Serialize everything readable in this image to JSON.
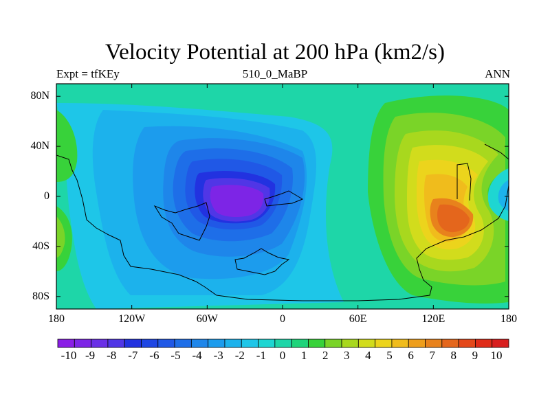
{
  "title": "Velocity Potential at 200 hPa (km2/s)",
  "subtitle_left": "Expt = tfKEy",
  "subtitle_center": "510_0_MaBP",
  "subtitle_right": "ANN",
  "y_ticks": [
    "80N",
    "40N",
    "0",
    "40S",
    "80S"
  ],
  "x_ticks": [
    "180",
    "120W",
    "60W",
    "0",
    "60E",
    "120E",
    "180"
  ],
  "colorbar": {
    "labels": [
      "-10",
      "-9",
      "-8",
      "-7",
      "-6",
      "-5",
      "-4",
      "-3",
      "-2",
      "-1",
      "0",
      "1",
      "2",
      "3",
      "4",
      "5",
      "6",
      "7",
      "8",
      "9",
      "10"
    ],
    "colors": [
      "#8a1ee6",
      "#7d25e6",
      "#6a30e6",
      "#5036e6",
      "#2232e0",
      "#1e46e4",
      "#2058e6",
      "#1e6ee8",
      "#1e86ea",
      "#1c9ced",
      "#1cb2ec",
      "#1ec6e8",
      "#1ed6d2",
      "#1ed6a8",
      "#1ed47a",
      "#38d23a",
      "#7ad428",
      "#a8d81e",
      "#d2dc1c",
      "#ecd41c",
      "#f0bc1c",
      "#ee9e1c",
      "#e8821c",
      "#e4661c",
      "#e4481a",
      "#e02c18",
      "#d81e1e"
    ]
  },
  "chart_data": {
    "type": "contour_map",
    "field": "Velocity Potential at 200 hPa",
    "units": "km2/s",
    "levels": [
      -10,
      -9,
      -8,
      -7,
      -6,
      -5,
      -4,
      -3,
      -2,
      -1,
      0,
      1,
      2,
      3,
      4,
      5,
      6,
      7,
      8,
      9,
      10
    ],
    "x_axis": {
      "range": [
        -180,
        180
      ],
      "ticks": [
        "180",
        "120W",
        "60W",
        "0",
        "60E",
        "120E",
        "180"
      ]
    },
    "y_axis": {
      "range": [
        -90,
        90
      ],
      "ticks": [
        "80N",
        "40N",
        "0",
        "40S",
        "80S"
      ]
    },
    "features": [
      {
        "name": "minimum",
        "lon": -30,
        "lat": 0,
        "value": -9
      },
      {
        "name": "maximum",
        "lon": 135,
        "lat": -20,
        "value": 8
      },
      {
        "name": "secondary_max",
        "lon": 120,
        "lat": 20,
        "value": 6
      }
    ]
  }
}
